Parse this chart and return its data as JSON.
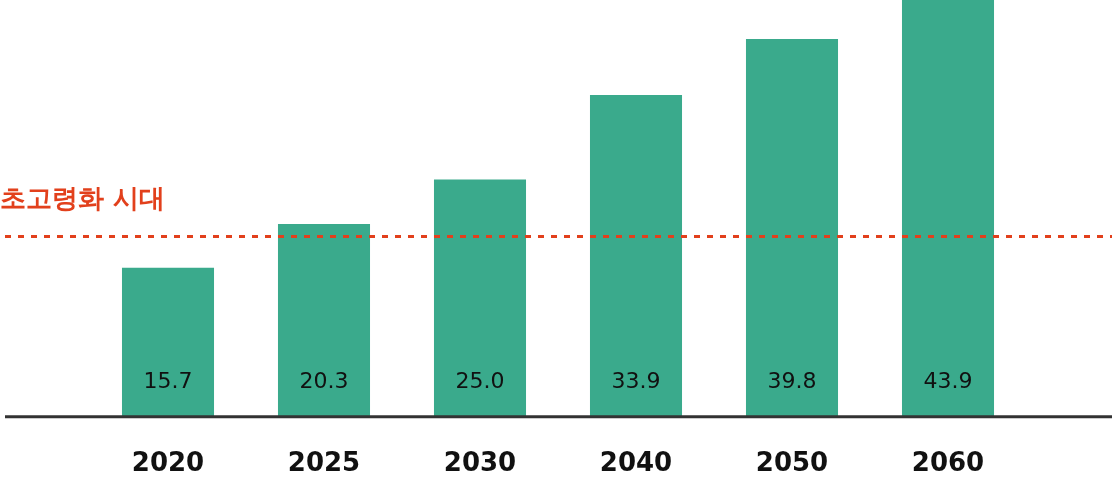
{
  "chart_data": {
    "type": "bar",
    "categories": [
      "2020",
      "2025",
      "2030",
      "2040",
      "2050",
      "2060"
    ],
    "values": [
      15.7,
      20.3,
      25.0,
      33.9,
      39.8,
      43.9
    ],
    "value_labels": [
      "15.7",
      "20.3",
      "25.0",
      "33.9",
      "39.8",
      "43.9"
    ],
    "color": "#3aaa8c",
    "ylim": [
      0,
      43.9
    ],
    "tick_labels": "x",
    "grid": false,
    "legend": false,
    "ref_lines": [
      {
        "axis": "y",
        "value": 19,
        "label": "초고령화 시대",
        "color": "#e2401c",
        "line_style": "dotted"
      }
    ]
  }
}
